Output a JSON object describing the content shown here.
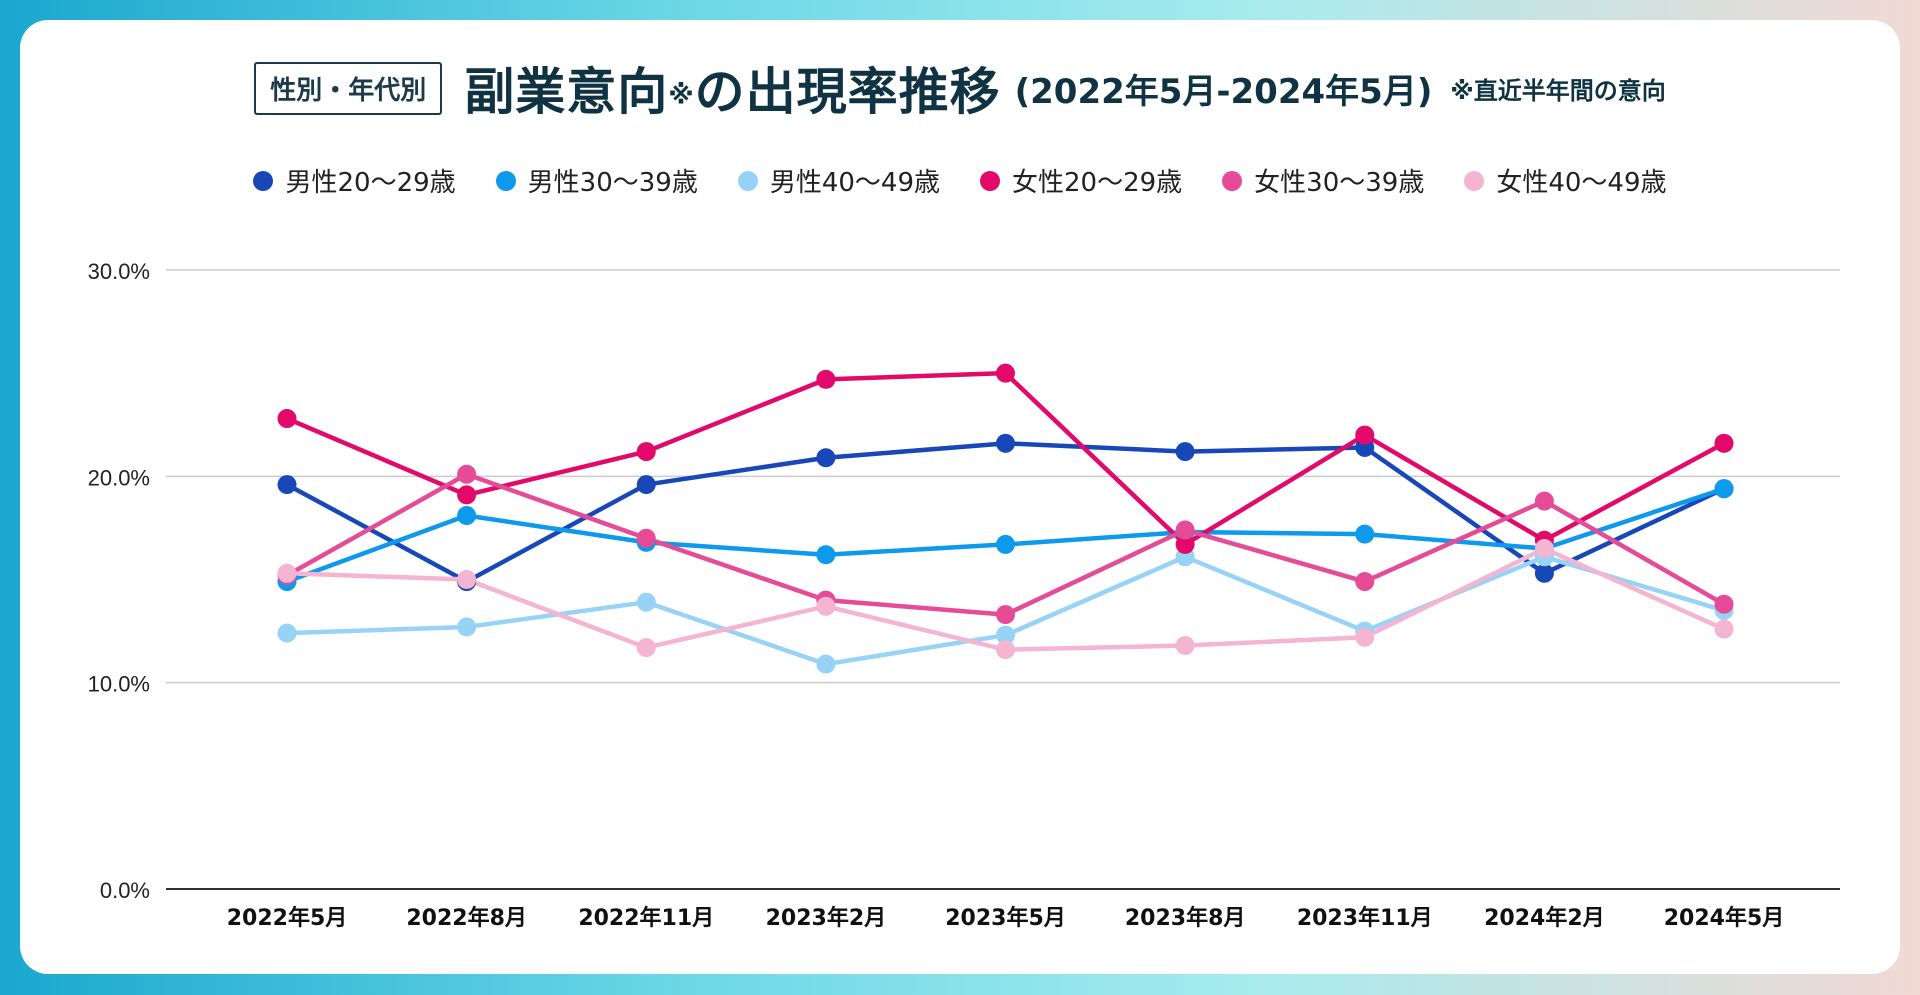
{
  "header": {
    "tag": "性別・年代別",
    "title": "副業意向",
    "title_note_mark": "※",
    "title_rest": "の出現率推移",
    "period": "(2022年5月-2024年5月)",
    "subnote": "※直近半年間の意向"
  },
  "chart_data": {
    "type": "line",
    "title": "副業意向※の出現率推移",
    "categories": [
      "2022年5月",
      "2022年8月",
      "2022年11月",
      "2023年2月",
      "2023年5月",
      "2023年8月",
      "2023年11月",
      "2024年2月",
      "2024年5月"
    ],
    "ylim": [
      0,
      30
    ],
    "yticks": [
      "0.0%",
      "10.0%",
      "20.0%",
      "30.0%"
    ],
    "ytick_values": [
      0,
      10,
      20,
      30
    ],
    "grid": true,
    "legend_position": "top",
    "series": [
      {
        "name": "男性20〜29歳",
        "color": "#1848b8",
        "values": [
          19.6,
          14.9,
          19.6,
          20.9,
          21.6,
          21.2,
          21.4,
          15.3,
          19.4
        ]
      },
      {
        "name": "男性30〜39歳",
        "color": "#0d99ec",
        "values": [
          14.9,
          18.1,
          16.8,
          16.2,
          16.7,
          17.3,
          17.2,
          16.5,
          19.4
        ]
      },
      {
        "name": "男性40〜49歳",
        "color": "#97d3f6",
        "values": [
          12.4,
          12.7,
          13.9,
          10.9,
          12.3,
          16.1,
          12.5,
          16.1,
          13.5
        ]
      },
      {
        "name": "女性20〜29歳",
        "color": "#e2096a",
        "values": [
          22.8,
          19.1,
          21.2,
          24.7,
          25.0,
          16.7,
          22.0,
          16.9,
          21.6
        ]
      },
      {
        "name": "女性30〜39歳",
        "color": "#e54b96",
        "values": [
          15.2,
          20.1,
          17.0,
          14.0,
          13.3,
          17.4,
          14.9,
          18.8,
          13.8
        ]
      },
      {
        "name": "女性40〜49歳",
        "color": "#f4b4d2",
        "values": [
          15.3,
          15.0,
          11.7,
          13.7,
          11.6,
          11.8,
          12.2,
          16.5,
          12.6
        ]
      }
    ]
  }
}
